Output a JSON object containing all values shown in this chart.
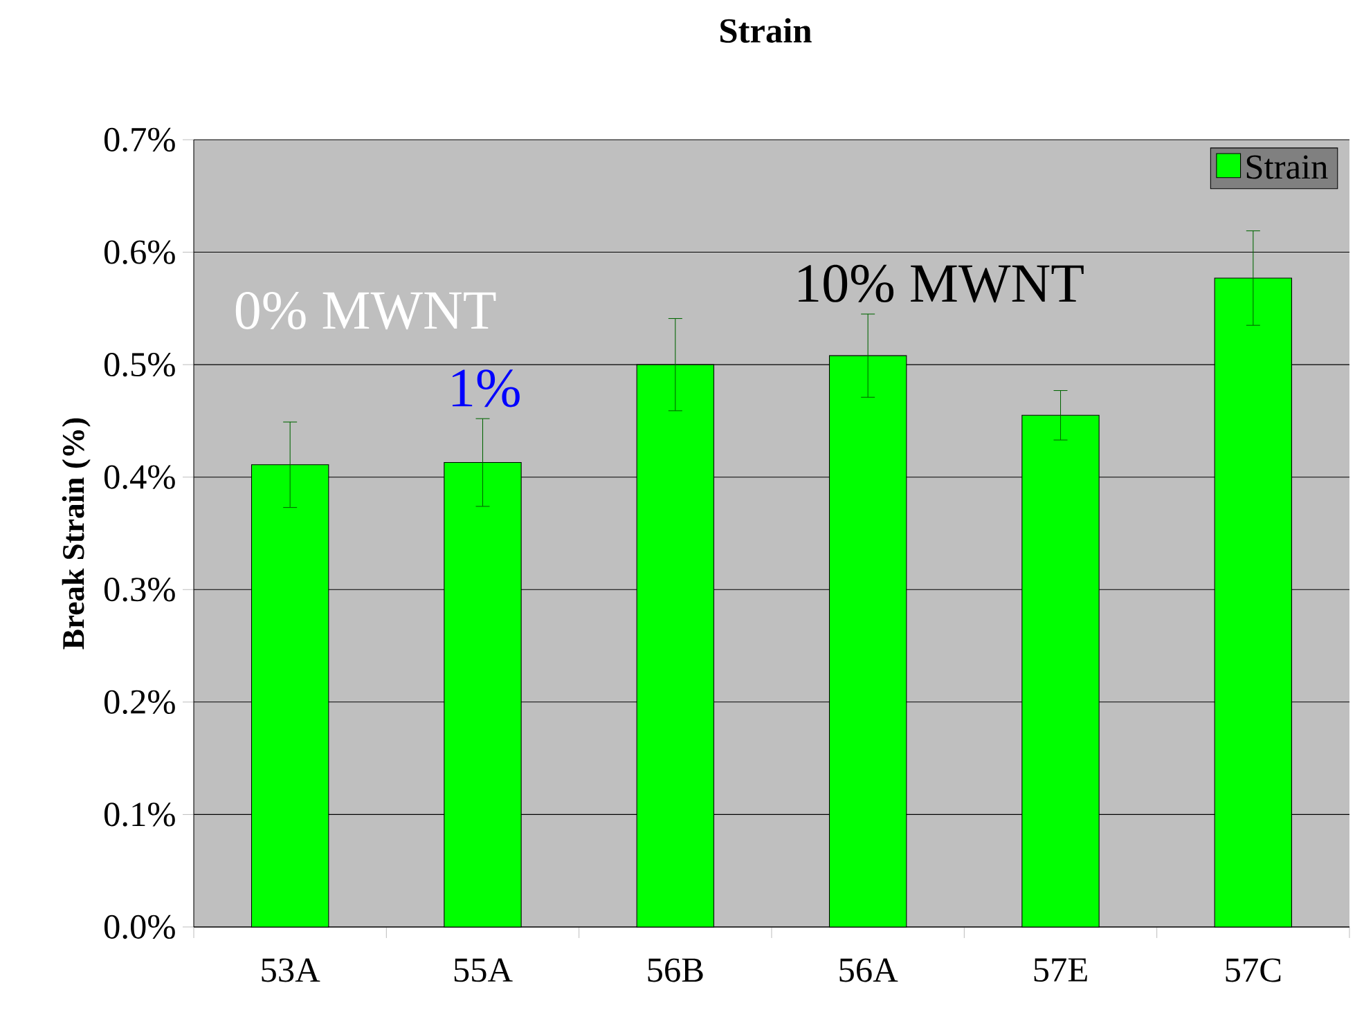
{
  "chart_data": {
    "type": "bar",
    "title": "Strain",
    "ylabel": "Break Strain (%)",
    "categories": [
      "53A",
      "55A",
      "56B",
      "56A",
      "57E",
      "57C"
    ],
    "series": [
      {
        "name": "Strain",
        "color": "#00ff00",
        "values": [
          0.411,
          0.413,
          0.5,
          0.508,
          0.455,
          0.577
        ],
        "errors": [
          0.038,
          0.039,
          0.041,
          0.037,
          0.022,
          0.042
        ]
      }
    ],
    "ylim": [
      0,
      0.7
    ],
    "yticks": [
      {
        "value": 0,
        "label": "0.0%"
      },
      {
        "value": 0.1,
        "label": "0.1%"
      },
      {
        "value": 0.2,
        "label": "0.2%"
      },
      {
        "value": 0.3,
        "label": "0.3%"
      },
      {
        "value": 0.4,
        "label": "0.4%"
      },
      {
        "value": 0.5,
        "label": "0.5%"
      },
      {
        "value": 0.6,
        "label": "0.6%"
      },
      {
        "value": 0.7,
        "label": "0.7%"
      }
    ],
    "annotations": [
      "0% MWNT",
      "1%",
      "10% MWNT"
    ],
    "grid": "y",
    "legend": "top right"
  }
}
